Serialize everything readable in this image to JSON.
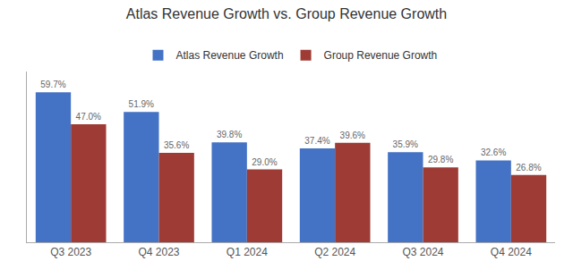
{
  "chart_data": {
    "type": "bar",
    "title": "Atlas Revenue Growth vs. Group Revenue Growth",
    "categories": [
      "Q3 2023",
      "Q4 2023",
      "Q1 2024",
      "Q2 2024",
      "Q3 2024",
      "Q4 2024"
    ],
    "series": [
      {
        "name": "Atlas Revenue Growth",
        "color": "#4472C4",
        "values": [
          59.7,
          51.9,
          39.8,
          37.4,
          35.9,
          32.6
        ],
        "value_labels": [
          "59.7%",
          "51.9%",
          "39.8%",
          "37.4%",
          "35.9%",
          "32.6%"
        ]
      },
      {
        "name": "Group Revenue Growth",
        "color": "#9E3B35",
        "values": [
          47.0,
          35.6,
          29.0,
          39.6,
          29.8,
          26.8
        ],
        "value_labels": [
          "47.0%",
          "35.6%",
          "29.0%",
          "39.6%",
          "29.8%",
          "26.8%"
        ]
      }
    ],
    "ylim": [
      0,
      68
    ],
    "data_labels": true,
    "tick_labels": "x",
    "legend": "top",
    "grid": false
  }
}
